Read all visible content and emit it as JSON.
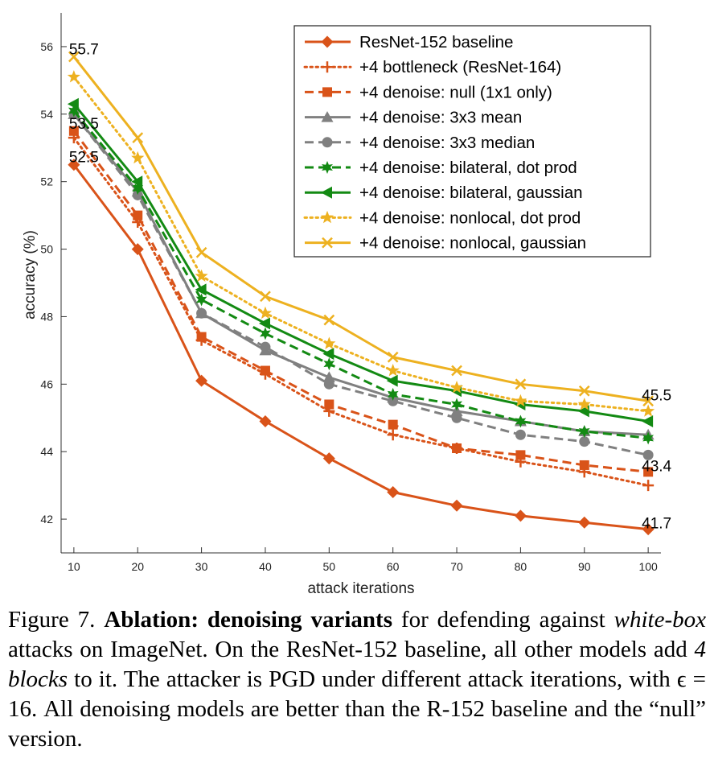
{
  "chart_data": {
    "type": "line",
    "xlabel": "attack iterations",
    "ylabel": "accuracy (%)",
    "x": [
      10,
      20,
      30,
      40,
      50,
      60,
      70,
      80,
      90,
      100
    ],
    "xlim": [
      8,
      102
    ],
    "ylim": [
      41,
      57
    ],
    "xticks": [
      10,
      20,
      30,
      40,
      50,
      60,
      70,
      80,
      90,
      100
    ],
    "yticks": [
      42,
      44,
      46,
      48,
      50,
      52,
      54,
      56
    ],
    "grid": false,
    "legend_placement": "top-right",
    "series": [
      {
        "name": "ResNet-152 baseline",
        "color": "#d95319",
        "line": "solid",
        "marker": "diamond",
        "values": [
          52.5,
          50.0,
          46.1,
          44.9,
          43.8,
          42.8,
          42.4,
          42.1,
          41.9,
          41.7
        ]
      },
      {
        "name": "+4 bottleneck (ResNet-164)",
        "color": "#d95319",
        "line": "dotted",
        "marker": "plus",
        "values": [
          53.3,
          50.8,
          47.3,
          46.3,
          45.2,
          44.5,
          44.1,
          43.7,
          43.4,
          43.0
        ]
      },
      {
        "name": "+4 denoise: null (1x1 only)",
        "color": "#d95319",
        "line": "dashed",
        "marker": "square",
        "values": [
          53.5,
          51.0,
          47.4,
          46.4,
          45.4,
          44.8,
          44.1,
          43.9,
          43.6,
          43.4
        ]
      },
      {
        "name": "+4 denoise: 3x3 mean",
        "color": "#808080",
        "line": "solid",
        "marker": "triangle",
        "values": [
          54.0,
          51.7,
          48.1,
          47.0,
          46.2,
          45.6,
          45.2,
          44.9,
          44.6,
          44.5
        ]
      },
      {
        "name": "+4 denoise: 3x3 median",
        "color": "#808080",
        "line": "dashed",
        "marker": "circle",
        "values": [
          54.0,
          51.6,
          48.1,
          47.1,
          46.0,
          45.5,
          45.0,
          44.5,
          44.3,
          43.9
        ]
      },
      {
        "name": "+4 denoise: bilateral, dot prod",
        "color": "#138a13",
        "line": "dashed",
        "marker": "star6",
        "values": [
          54.1,
          51.8,
          48.5,
          47.5,
          46.6,
          45.7,
          45.4,
          44.9,
          44.6,
          44.4
        ]
      },
      {
        "name": "+4 denoise: bilateral, gaussian",
        "color": "#138a13",
        "line": "solid",
        "marker": "triangle-left",
        "values": [
          54.3,
          52.0,
          48.8,
          47.8,
          46.9,
          46.1,
          45.8,
          45.4,
          45.2,
          44.9
        ]
      },
      {
        "name": "+4 denoise: nonlocal, dot prod",
        "color": "#edb120",
        "line": "dotted",
        "marker": "star",
        "values": [
          55.1,
          52.7,
          49.2,
          48.1,
          47.2,
          46.4,
          45.9,
          45.5,
          45.4,
          45.2
        ]
      },
      {
        "name": "+4 denoise: nonlocal, gaussian",
        "color": "#edb120",
        "line": "solid",
        "marker": "x",
        "values": [
          55.7,
          53.3,
          49.9,
          48.6,
          47.9,
          46.8,
          46.4,
          46.0,
          45.8,
          45.5
        ]
      }
    ],
    "annotations": [
      {
        "text": "55.7",
        "x": 10,
        "y": 55.7
      },
      {
        "text": "53.5",
        "x": 10,
        "y": 53.5
      },
      {
        "text": "52.5",
        "x": 10,
        "y": 52.5
      },
      {
        "text": "45.5",
        "x": 100,
        "y": 45.5
      },
      {
        "text": "43.4",
        "x": 100,
        "y": 43.4
      },
      {
        "text": "41.7",
        "x": 100,
        "y": 41.7
      }
    ]
  },
  "caption": {
    "figure_label": "Figure 7.",
    "bold_title": "Ablation: denoising variants",
    "text_1": " for defending against ",
    "italic_1": "white-box",
    "text_2": " attacks on ImageNet. On the ResNet-152 baseline, all other models add ",
    "italic_2": "4 blocks",
    "text_3": " to it. The attacker is PGD under different attack iterations, with ϵ = 16. All denoising models are better than the R-152 baseline and the “null” version."
  }
}
